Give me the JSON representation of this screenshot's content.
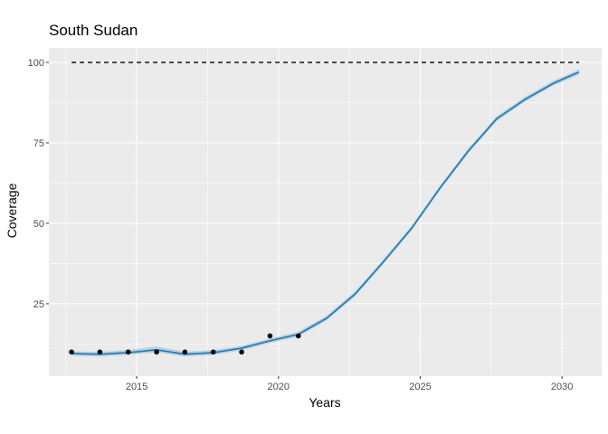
{
  "chart_data": {
    "type": "line",
    "title": "South Sudan",
    "xlabel": "Years",
    "ylabel": "Coverage",
    "xlim": [
      2011.9,
      2031.4
    ],
    "ylim": [
      2.5,
      104.5
    ],
    "x_ticks": [
      2015,
      2020,
      2025,
      2030
    ],
    "x_tick_labels": [
      "2015",
      "2020",
      "2025",
      "2030"
    ],
    "y_ticks": [
      25,
      50,
      75,
      100
    ],
    "y_tick_labels": [
      "25",
      "50",
      "75",
      "100"
    ],
    "grid": true,
    "colors": {
      "panel": "#ebebeb",
      "grid": "#ffffff",
      "fit_line": "#1f77b4",
      "band": "#a6c8dc",
      "points": "#000000",
      "target": "#000000"
    },
    "target_line": {
      "y": 100,
      "x_range": [
        2012.7,
        2030.6
      ],
      "style": "dashed"
    },
    "observed": {
      "x": [
        2012.7,
        2013.7,
        2014.7,
        2015.7,
        2016.7,
        2017.7,
        2018.7,
        2019.7,
        2020.7
      ],
      "y": [
        10,
        10,
        10,
        10,
        10,
        10,
        10,
        15,
        15
      ]
    },
    "fitted": {
      "x": [
        2012.7,
        2013.7,
        2014.7,
        2015.7,
        2016.7,
        2017.7,
        2018.7,
        2019.7,
        2020.7,
        2021.7,
        2022.7,
        2023.7,
        2024.7,
        2025.7,
        2026.7,
        2027.7,
        2028.7,
        2029.7,
        2030.6
      ],
      "y": [
        9.5,
        9.3,
        9.8,
        10.7,
        9.3,
        9.8,
        11.2,
        13.5,
        15.5,
        20.5,
        28,
        38,
        48.5,
        61,
        72.5,
        82.5,
        88.5,
        93.5,
        97
      ],
      "lower": [
        8.8,
        8.6,
        9.1,
        9.9,
        8.6,
        9.1,
        10.5,
        12.8,
        14.8,
        19.8,
        27.3,
        37.3,
        47.8,
        60.3,
        71.8,
        81.8,
        87.8,
        92.8,
        96.2
      ],
      "upper": [
        10.2,
        10.0,
        10.6,
        11.7,
        10.1,
        10.6,
        11.9,
        14.2,
        16.3,
        21.3,
        28.8,
        38.8,
        49.3,
        61.8,
        73.3,
        83.3,
        89.3,
        94.3,
        97.8
      ]
    }
  }
}
